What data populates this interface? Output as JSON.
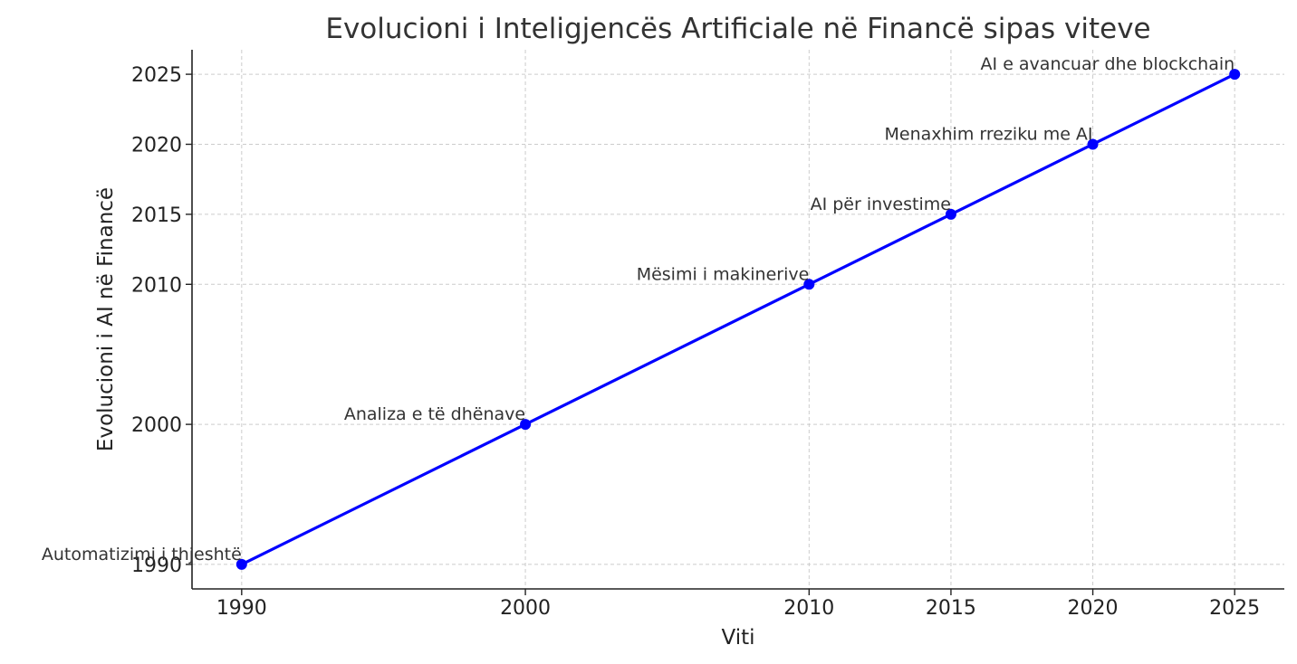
{
  "chart_data": {
    "type": "line",
    "title": "Evolucioni i Inteligjencës Artificiale në Financë sipas viteve",
    "xlabel": "Viti",
    "ylabel": "Evolucioni i AI në Financë",
    "x": [
      1990,
      2000,
      2010,
      2015,
      2020,
      2025
    ],
    "xticks": [
      1990,
      2000,
      2010,
      2015,
      2020,
      2025
    ],
    "yticks": [
      1990,
      2000,
      2010,
      2015,
      2020,
      2025
    ],
    "xlim": [
      1988.25,
      2026.75
    ],
    "ylim": [
      1988.25,
      2026.75
    ],
    "grid": true,
    "series": [
      {
        "values": [
          1990,
          2000,
          2010,
          2015,
          2020,
          2025
        ],
        "color": "#0000ff",
        "marker": "circle"
      }
    ],
    "annotations": [
      "Automatizimi i thjeshtë",
      "Analiza e të dhënave",
      "Mësimi i makinerive",
      "AI për investime",
      "Menaxhim rreziku me AI",
      "AI e avancuar dhe blockchain"
    ]
  }
}
